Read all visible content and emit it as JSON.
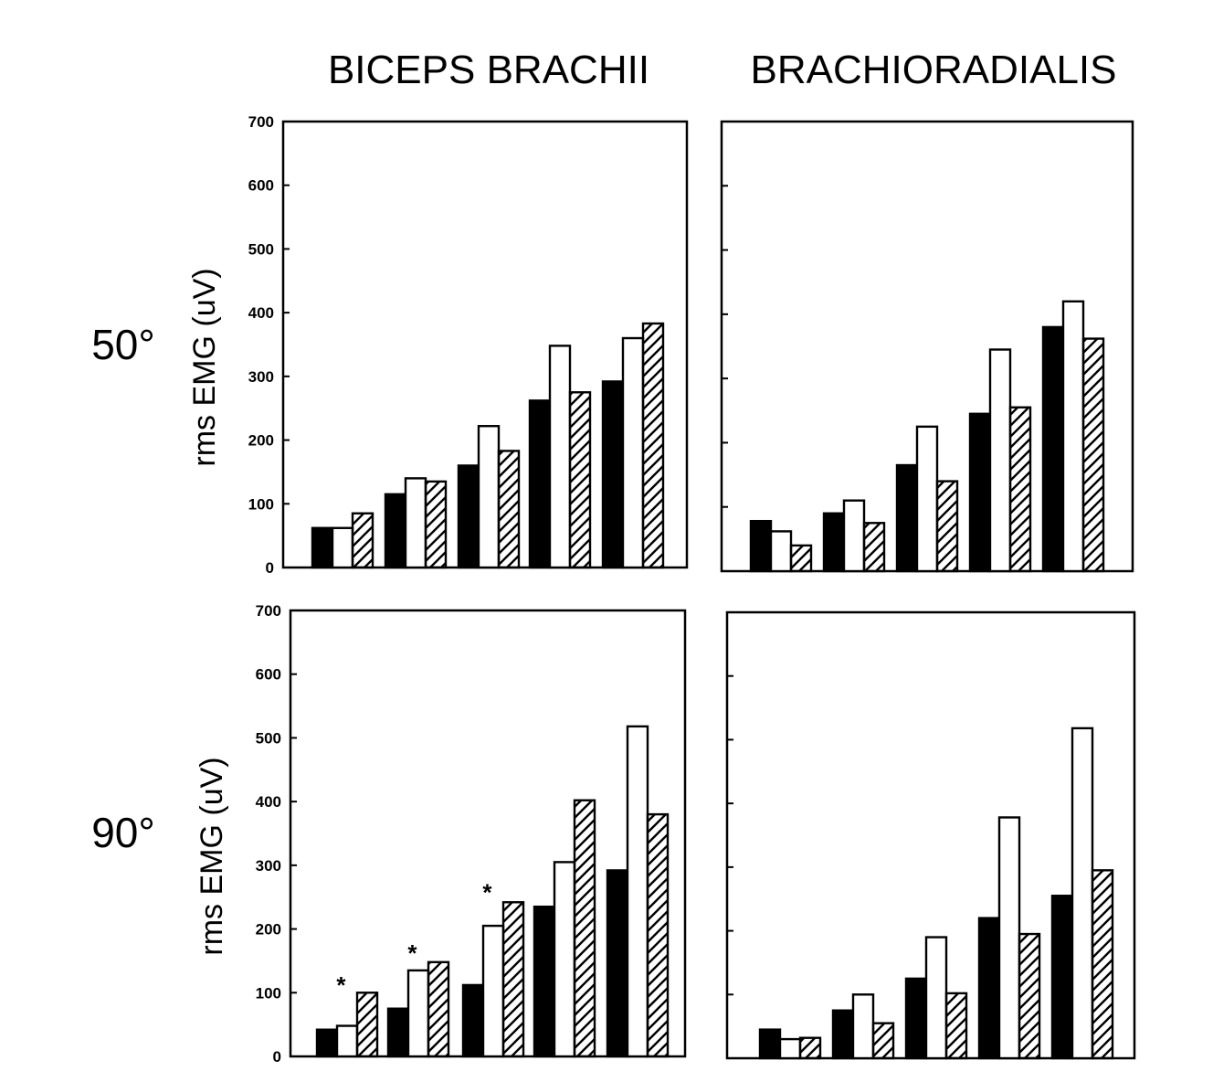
{
  "column_titles": [
    "BICEPS BRACHII",
    "BRACHIORADIALIS"
  ],
  "row_labels": [
    "50°",
    "90°"
  ],
  "chart_data": [
    {
      "type": "bar",
      "panel": "biceps-50",
      "ylabel": "rms EMG (uV)",
      "ylim": [
        0,
        700
      ],
      "yticks": [
        "0",
        "100",
        "200",
        "300",
        "400",
        "500",
        "600",
        "700"
      ],
      "series": [
        {
          "fill": "solid",
          "values": [
            62,
            115,
            160,
            262,
            292
          ]
        },
        {
          "fill": "open",
          "values": [
            62,
            140,
            222,
            348,
            360
          ]
        },
        {
          "fill": "hatched",
          "values": [
            85,
            135,
            183,
            275,
            383
          ]
        }
      ],
      "annotations": []
    },
    {
      "type": "bar",
      "panel": "brachioradialis-50",
      "ylabel": "",
      "ylim": [
        0,
        700
      ],
      "yticks": [],
      "series": [
        {
          "fill": "solid",
          "values": [
            78,
            90,
            165,
            245,
            380
          ]
        },
        {
          "fill": "open",
          "values": [
            62,
            110,
            225,
            345,
            420
          ]
        },
        {
          "fill": "hatched",
          "values": [
            40,
            75,
            140,
            255,
            362
          ]
        }
      ],
      "annotations": []
    },
    {
      "type": "bar",
      "panel": "biceps-90",
      "ylabel": "rms EMG (uV)",
      "ylim": [
        0,
        700
      ],
      "yticks": [
        "0",
        "100",
        "200",
        "300",
        "400",
        "500",
        "600",
        "700"
      ],
      "series": [
        {
          "fill": "solid",
          "values": [
            42,
            75,
            112,
            235,
            292
          ]
        },
        {
          "fill": "open",
          "values": [
            48,
            135,
            205,
            305,
            518
          ]
        },
        {
          "fill": "hatched",
          "values": [
            100,
            148,
            242,
            402,
            380
          ]
        }
      ],
      "annotations": [
        {
          "text": "*",
          "group": 0,
          "y": 105
        },
        {
          "text": "*",
          "group": 1,
          "y": 155
        },
        {
          "text": "*",
          "group": 2,
          "y": 250
        }
      ]
    },
    {
      "type": "bar",
      "panel": "brachioradialis-90",
      "ylabel": "",
      "ylim": [
        0,
        700
      ],
      "yticks": [],
      "series": [
        {
          "fill": "solid",
          "values": [
            45,
            75,
            125,
            220,
            255
          ]
        },
        {
          "fill": "open",
          "values": [
            30,
            100,
            190,
            378,
            518
          ]
        },
        {
          "fill": "hatched",
          "values": [
            32,
            55,
            102,
            195,
            295
          ]
        }
      ],
      "annotations": []
    }
  ]
}
